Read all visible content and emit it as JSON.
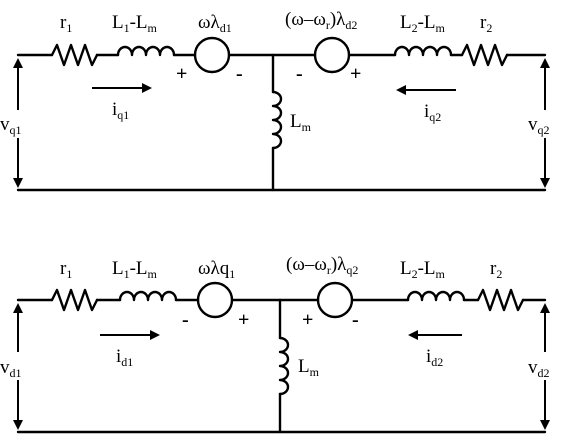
{
  "q_axis": {
    "r1": {
      "base": "r",
      "sub": "1"
    },
    "l1": {
      "text": "L",
      "sub": "1",
      "rest": "-L",
      "sub2": "m"
    },
    "src1": {
      "text": "ωλ",
      "sub": "d1"
    },
    "src2": {
      "text": "(ω–ω",
      "sub": "r",
      "mid": ")λ",
      "sub2": "d2"
    },
    "l2": {
      "text": "L",
      "sub": "2",
      "rest": "-L",
      "sub2": "m"
    },
    "r2": {
      "base": "r",
      "sub": "2"
    },
    "lm": {
      "base": "L",
      "sub": "m"
    },
    "v_left": {
      "base": "v",
      "sub": "q1"
    },
    "v_right": {
      "base": "v",
      "sub": "q2"
    },
    "i_left": {
      "base": "i",
      "sub": "q1"
    },
    "i_right": {
      "base": "i",
      "sub": "q2"
    },
    "src1_plus": "+",
    "src1_minus": "-",
    "src2_minus": "-",
    "src2_plus": "+"
  },
  "d_axis": {
    "r1": {
      "base": "r",
      "sub": "1"
    },
    "l1": {
      "text": "L",
      "sub": "1",
      "rest": "-L",
      "sub2": "m"
    },
    "src1": {
      "text": "ωλq",
      "sub": "1"
    },
    "src2": {
      "text": "(ω–ω",
      "sub": "r",
      "mid": ")λ",
      "sub2": "q2"
    },
    "l2": {
      "text": "L",
      "sub": "2",
      "rest": "-L",
      "sub2": "m"
    },
    "r2": {
      "base": "r",
      "sub": "2"
    },
    "lm": {
      "base": "L",
      "sub": "m"
    },
    "v_left": {
      "base": "v",
      "sub": "d1"
    },
    "v_right": {
      "base": "v",
      "sub": "d2"
    },
    "i_left": {
      "base": "i",
      "sub": "d1"
    },
    "i_right": {
      "base": "i",
      "sub": "d2"
    },
    "src1_minus": "-",
    "src1_plus": "+",
    "src2_plus": "+",
    "src2_minus": "-"
  }
}
